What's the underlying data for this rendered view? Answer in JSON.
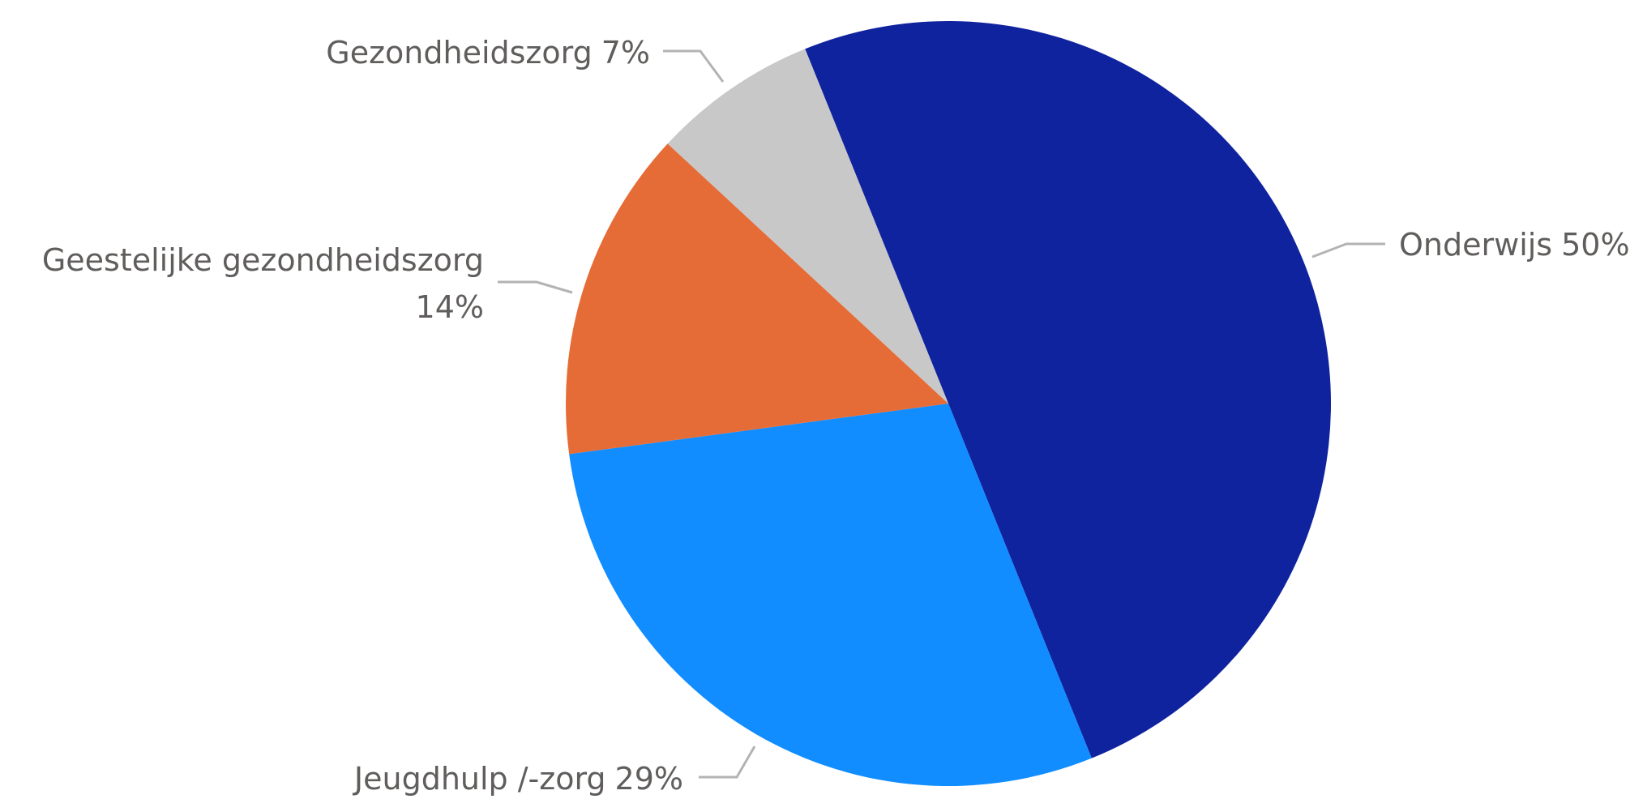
{
  "chart_data": {
    "type": "pie",
    "categories": [
      "Onderwijs",
      "Jeugdhulp /-zorg",
      "Geestelijke gezondheidszorg",
      "Gezondheidszorg"
    ],
    "values": [
      50,
      29,
      14,
      7
    ],
    "value_labels": [
      "50%",
      "29%",
      "14%",
      "7%"
    ],
    "colors": [
      "#10239e",
      "#118dff",
      "#e66c37",
      "#c8c8c8"
    ]
  }
}
